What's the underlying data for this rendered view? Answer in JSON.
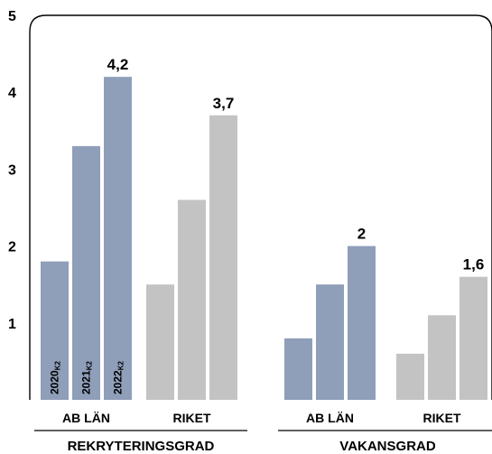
{
  "chart_data": {
    "type": "bar",
    "yticks": [
      "1",
      "2",
      "3",
      "4",
      "5"
    ],
    "ylim": [
      0,
      5
    ],
    "grid": false,
    "colors": {
      "ab_lan": "#8f9eb9",
      "riket": "#c3c3c3"
    },
    "groups": [
      {
        "label": "REKRYTERINGSGRAD",
        "clusters": [
          {
            "label": "AB LÄN",
            "color_key": "ab_lan",
            "values": [
              1.8,
              3.3,
              4.2
            ],
            "bar_labels": [
              {
                "year": "2020",
                "sub": "K2"
              },
              {
                "year": "2021",
                "sub": "K2"
              },
              {
                "year": "2022",
                "sub": "K2"
              }
            ],
            "value_label": "4,2"
          },
          {
            "label": "RIKET",
            "color_key": "riket",
            "values": [
              1.5,
              2.6,
              3.7
            ],
            "value_label": "3,7"
          }
        ]
      },
      {
        "label": "VAKANSGRAD",
        "clusters": [
          {
            "label": "AB LÄN",
            "color_key": "ab_lan",
            "values": [
              0.8,
              1.5,
              2.0
            ],
            "value_label": "2"
          },
          {
            "label": "RIKET",
            "color_key": "riket",
            "values": [
              0.6,
              1.1,
              1.6
            ],
            "value_label": "1,6"
          }
        ]
      }
    ]
  }
}
